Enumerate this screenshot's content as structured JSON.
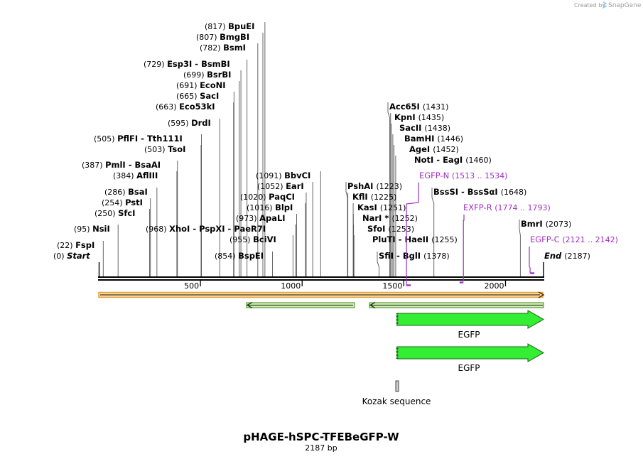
{
  "credit": {
    "created_by": "Created by",
    "brand": "SnapGene"
  },
  "plasmid": {
    "name": "pHAGE-hSPC-TFEBeGFP-W",
    "length_label": "2187 bp",
    "length": 2187
  },
  "ruler": {
    "ticks": [
      "500",
      "1000",
      "1500",
      "2000"
    ]
  },
  "sites": [
    {
      "pos": "(0)",
      "name": "Start",
      "bp": 0,
      "italic": true
    },
    {
      "pos": "(22)",
      "name": "FspI",
      "bp": 22
    },
    {
      "pos": "(95)",
      "name": "NsiI",
      "bp": 95
    },
    {
      "pos": "(250)",
      "name": "SfcI",
      "bp": 250
    },
    {
      "pos": "(254)",
      "name": "PstI",
      "bp": 254
    },
    {
      "pos": "(286)",
      "name": "BsaI",
      "bp": 286
    },
    {
      "pos": "(384)",
      "name": "AflIII",
      "bp": 384
    },
    {
      "pos": "(387)",
      "name": "PmlI - BsaAI",
      "bp": 387
    },
    {
      "pos": "(503)",
      "name": "TsoI",
      "bp": 503
    },
    {
      "pos": "(505)",
      "name": "PflFI - Tth111I",
      "bp": 505
    },
    {
      "pos": "(595)",
      "name": "DrdI",
      "bp": 595
    },
    {
      "pos": "(663)",
      "name": "Eco53kI",
      "bp": 663
    },
    {
      "pos": "(665)",
      "name": "SacI",
      "bp": 665
    },
    {
      "pos": "(691)",
      "name": "EcoNI",
      "bp": 691
    },
    {
      "pos": "(699)",
      "name": "BsrBI",
      "bp": 699
    },
    {
      "pos": "(729)",
      "name": "Esp3I - BsmBI",
      "bp": 729
    },
    {
      "pos": "(782)",
      "name": "BsmI",
      "bp": 782
    },
    {
      "pos": "(807)",
      "name": "BmgBI",
      "bp": 807
    },
    {
      "pos": "(817)",
      "name": "BpuEI",
      "bp": 817
    },
    {
      "pos": "(854)",
      "name": "BspEI",
      "bp": 854
    },
    {
      "pos": "(955)",
      "name": "BciVI",
      "bp": 955
    },
    {
      "pos": "(968)",
      "name": "XhoI - PspXI - PaeR7I",
      "bp": 968
    },
    {
      "pos": "(973)",
      "name": "ApaLI",
      "bp": 973
    },
    {
      "pos": "(1016)",
      "name": "BlpI",
      "bp": 1016
    },
    {
      "pos": "(1020)",
      "name": "PaqCI",
      "bp": 1020
    },
    {
      "pos": "(1052)",
      "name": "EarI",
      "bp": 1052
    },
    {
      "pos": "(1091)",
      "name": "BbvCI",
      "bp": 1091
    },
    {
      "pos": "(1223)",
      "name": "PshAI",
      "bp": 1223
    },
    {
      "pos": "(1225)",
      "name": "KflI",
      "bp": 1225
    },
    {
      "pos": "(1251)",
      "name": "KasI",
      "bp": 1251
    },
    {
      "pos": "(1252)",
      "name": "NarI *",
      "bp": 1252
    },
    {
      "pos": "(1253)",
      "name": "SfoI",
      "bp": 1253
    },
    {
      "pos": "(1255)",
      "name": "PluTI - HaeII",
      "bp": 1255
    },
    {
      "pos": "(1378)",
      "name": "SfiI - BglI",
      "bp": 1378
    },
    {
      "pos": "(1431)",
      "name": "Acc65I",
      "bp": 1431
    },
    {
      "pos": "(1435)",
      "name": "KpnI",
      "bp": 1435
    },
    {
      "pos": "(1438)",
      "name": "SacII",
      "bp": 1438
    },
    {
      "pos": "(1446)",
      "name": "BamHI",
      "bp": 1446
    },
    {
      "pos": "(1452)",
      "name": "AgeI",
      "bp": 1452
    },
    {
      "pos": "(1460)",
      "name": "NotI - EagI",
      "bp": 1460
    },
    {
      "pos": "(1648)",
      "name": "BssSI - BssSαI",
      "bp": 1648
    },
    {
      "pos": "(2073)",
      "name": "BmrI",
      "bp": 2073
    },
    {
      "pos": "(2187)",
      "name": "End",
      "bp": 2187,
      "italic": true
    }
  ],
  "primers": [
    {
      "name": "EGFP-N",
      "pos": "(1513 .. 1534)",
      "start": 1513,
      "end": 1534
    },
    {
      "name": "EXFP-R",
      "pos": "(1774 .. 1793)",
      "start": 1774,
      "end": 1793
    },
    {
      "name": "EGFP-C",
      "pos": "(2121 .. 2142)",
      "start": 2121,
      "end": 2142
    }
  ],
  "features": [
    {
      "label": "EGFP"
    },
    {
      "label": "EGFP"
    },
    {
      "label": "Kozak sequence"
    }
  ],
  "colors": {
    "primer": "#a030c0",
    "orf_orange": "#e8a23c",
    "orf_green": "#5a9c2a",
    "feature_green": "#33ee33",
    "feature_stroke": "#1a6a1a"
  }
}
